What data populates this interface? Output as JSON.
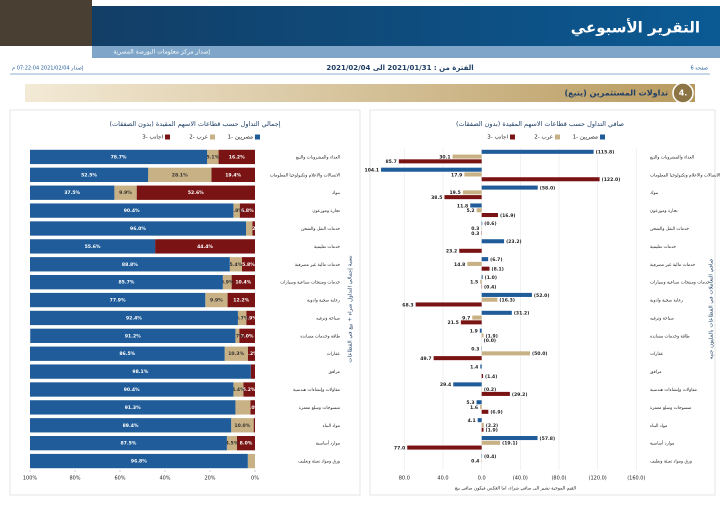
{
  "header": {
    "title": "التقرير الأسبوعي",
    "subtitle": "إصدار مركز معلومات البورصة المصرية",
    "page": "صفحة 6",
    "period": "الفترة من : 2021/01/31 الى 2021/02/04",
    "issued": "إصدار 2021/02/04 07:22:04 م"
  },
  "section": {
    "number": "4.",
    "title": "تداولات المستثمرين (يتبع)"
  },
  "chart_data": [
    {
      "type": "stacked_bar",
      "orientation": "horizontal",
      "title": "إجمالي التداول حسب قطاعات الاسهم المقيدة (بدون الصفقات)",
      "y_label": "نسبة إجمالي التداول شراء + بيع في القطاعات",
      "categories": [
        "الغذاء والمشروبات والتبغ",
        "الاتصالات والاعلام وتكنولوجيا المعلومات",
        "بنوك",
        "تجارة وموزعون",
        "خدمات النقل والشحن",
        "خدمات تعليمية",
        "خدمات مالية غير مصرفية",
        "خدمات ومنتجات صناعية وسيارات",
        "رعاية صحية وادوية",
        "سياحة وترفيه",
        "طاقة وخدمات مساندة",
        "عقارات",
        "مرافق",
        "مقاولات وإنشاءات هندسية",
        "منسوجات وسلع معمرة",
        "مواد البناء",
        "موارد أساسية",
        "ورق ومواد تعبئة وتغليف"
      ],
      "series": [
        {
          "name": "مصريين -1",
          "color": "#1f5c99",
          "values": [
            78.7,
            52.5,
            37.5,
            90.4,
            96.0,
            55.6,
            88.8,
            85.7,
            77.9,
            92.4,
            91.2,
            86.5,
            98.1,
            90.4,
            91.3,
            89.4,
            87.5,
            96.8
          ],
          "value_labels": [
            "78.7%",
            "52.5%",
            "37.5%",
            "90.4%",
            "96.0%",
            "55.6%",
            "88.8%",
            "85.7%",
            "77.9%",
            "92.4%",
            "91.2%",
            "86.5%",
            "98.1%",
            "90.4%",
            "91.3%",
            "89.4%",
            "87.5%",
            "96.8%"
          ]
        },
        {
          "name": "عرب -2",
          "color": "#c8b184",
          "values": [
            5.1,
            28.1,
            9.9,
            2.8,
            2.8,
            0,
            5.4,
            3.9,
            9.9,
            3.7,
            1.7,
            10.3,
            0,
            4.4,
            6.7,
            10.0,
            4.5,
            3.2
          ],
          "value_labels": [
            "5.1%",
            "28.1%",
            "9.9%",
            "2.8%",
            null,
            null,
            "5.4%",
            "3.9%",
            "9.9%",
            "3.7%",
            "1.7%",
            "10.3%",
            null,
            "4.4%",
            null,
            "10.0%",
            "4.5%",
            null
          ]
        },
        {
          "name": "اجانب -3",
          "color": "#7a1414",
          "values": [
            16.2,
            19.4,
            52.6,
            6.8,
            1.2,
            44.4,
            5.8,
            10.4,
            12.2,
            3.9,
            7.0,
            3.2,
            1.9,
            5.2,
            2.0,
            0.6,
            8.0,
            0
          ],
          "value_labels": [
            "16.2%",
            "19.4%",
            "52.6%",
            "6.8%",
            "1.2%",
            "44.4%",
            "5.8%",
            "10.4%",
            "12.2%",
            "3.9%",
            "7.0%",
            "3.2%",
            null,
            "5.2%",
            "2.0%",
            null,
            "8.0%",
            null
          ]
        }
      ],
      "xlim": [
        100,
        0
      ],
      "xticks": [
        {
          "value": 100,
          "label": "100%"
        },
        {
          "value": 80,
          "label": "80%"
        },
        {
          "value": 60,
          "label": "60%"
        },
        {
          "value": 40,
          "label": "40%"
        },
        {
          "value": 20,
          "label": "20%"
        },
        {
          "value": 0,
          "label": "0%"
        }
      ]
    },
    {
      "type": "bar",
      "orientation": "horizontal",
      "title": "صافي التداول حسب قطاعات الاسهم المقيدة (بدون الصفقات)",
      "y_label": "صافي التعاملات في القطاعات بالمليون جنيه",
      "note": "القيم الموجبة تشير الى صافي شراء، اما العكس فيكون صافي بيع",
      "categories": [
        "الغذاء والمشروبات والتبغ",
        "الاتصالات والاعلام وتكنولوجيا المعلومات",
        "بنوك",
        "تجارة وموزعون",
        "خدمات النقل والشحن",
        "خدمات تعليمية",
        "خدمات مالية غير مصرفية",
        "خدمات ومنتجات صناعية وسيارات",
        "رعاية صحية وادوية",
        "سياحة وترفيه",
        "طاقة وخدمات مساندة",
        "عقارات",
        "مرافق",
        "مقاولات وإنشاءات هندسية",
        "منسوجات وسلع معمرة",
        "مواد البناء",
        "موارد أساسية",
        "ورق ومواد تعبئة وتغليف"
      ],
      "series": [
        {
          "name": "مصريين -1",
          "color": "#1f5c99",
          "values": [
            -115.8,
            104.1,
            -58.0,
            11.8,
            -0.6,
            -23.2,
            -6.7,
            -1.0,
            -52.0,
            -31.2,
            1.9,
            0.3,
            1.4,
            29.4,
            5.3,
            4.1,
            -57.8,
            -0.4
          ],
          "value_labels": [
            "(115.8)",
            "104.1",
            "(58.0)",
            "11.8",
            "(0.6)",
            "(23.2)",
            "(6.7)",
            "(1.0)",
            "(52.0)",
            "(31.2)",
            "1.9",
            "0.3",
            "1.4",
            "29.4",
            "5.3",
            "4.1",
            "(57.8)",
            "(0.4)"
          ]
        },
        {
          "name": "عرب -2",
          "color": "#c8b184",
          "values": [
            30.1,
            17.9,
            19.5,
            5.2,
            0.3,
            0,
            14.8,
            1.5,
            -16.3,
            9.7,
            -1.9,
            -50.0,
            0,
            -0.2,
            1.6,
            -2.2,
            -19.1,
            0.4
          ],
          "value_labels": [
            "30.1",
            "17.9",
            "19.5",
            "5.2",
            "0.3",
            null,
            "14.8",
            "1.5",
            "(16.3)",
            "9.7",
            "(1.9)",
            "(50.0)",
            null,
            "(0.2)",
            "1.6",
            "(2.2)",
            "(19.1)",
            "0.4"
          ]
        },
        {
          "name": "اجانب -3",
          "color": "#7a1414",
          "values": [
            85.7,
            -122.0,
            38.5,
            -16.9,
            0.3,
            23.2,
            -8.1,
            -0.4,
            68.3,
            21.5,
            0,
            49.7,
            -1.4,
            -29.2,
            -6.9,
            -1.9,
            77.0,
            0
          ],
          "value_labels": [
            "85.7",
            "(122.0)",
            "38.5",
            "(16.9)",
            "0.3",
            "23.2",
            "(8.1)",
            "(0.4)",
            "68.3",
            "21.5",
            "(0.0)",
            "49.7",
            "(1.4)",
            "(29.2)",
            "(6.9)",
            "(1.9)",
            "77.0",
            null
          ]
        }
      ],
      "xlim": [
        100,
        -170
      ],
      "xticks": [
        {
          "value": 80,
          "label": "80.0"
        },
        {
          "value": 40,
          "label": "40.0"
        },
        {
          "value": 0,
          "label": "0.0"
        },
        {
          "value": -40,
          "label": "(40.0)"
        },
        {
          "value": -80,
          "label": "(80.0)"
        },
        {
          "value": -120,
          "label": "(120.0)"
        },
        {
          "value": -160,
          "label": "(160.0)"
        }
      ],
      "grid": true
    }
  ]
}
